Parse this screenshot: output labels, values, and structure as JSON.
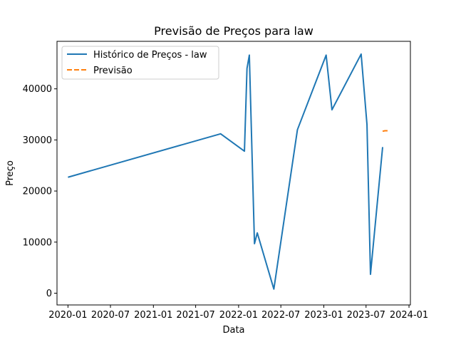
{
  "chart_data": {
    "type": "line",
    "title": "Previsão de Preços para law",
    "xlabel": "Data",
    "ylabel": "Preço",
    "grid": false,
    "legend_position": "top-left",
    "xlim": [
      "2019-11-15",
      "2024-01-07"
    ],
    "ylim": [
      -2300,
      49300
    ],
    "x_ticks": [
      "2020-01",
      "2020-07",
      "2021-01",
      "2021-07",
      "2022-01",
      "2022-07",
      "2023-01",
      "2023-07",
      "2024-01"
    ],
    "y_ticks": [
      0,
      10000,
      20000,
      30000,
      40000
    ],
    "series": [
      {
        "name": "Histórico de Preços - law",
        "color": "#1f77b4",
        "style": "solid",
        "x": [
          "2020-01-01",
          "2021-10-16",
          "2022-01-26",
          "2022-02-06",
          "2022-02-16",
          "2022-03-10",
          "2022-03-22",
          "2022-06-01",
          "2022-09-10",
          "2023-01-11",
          "2023-02-05",
          "2023-06-10",
          "2023-07-05",
          "2023-07-20",
          "2023-09-10"
        ],
        "y": [
          22700,
          31200,
          27800,
          44000,
          46600,
          9700,
          11800,
          800,
          32000,
          46600,
          35900,
          46800,
          33000,
          3700,
          28600
        ]
      },
      {
        "name": "Previsão",
        "color": "#ff7f0e",
        "style": "dashed",
        "x": [
          "2023-09-10",
          "2023-09-20",
          "2023-10-02"
        ],
        "y": [
          31700,
          31800,
          31800
        ]
      }
    ]
  }
}
